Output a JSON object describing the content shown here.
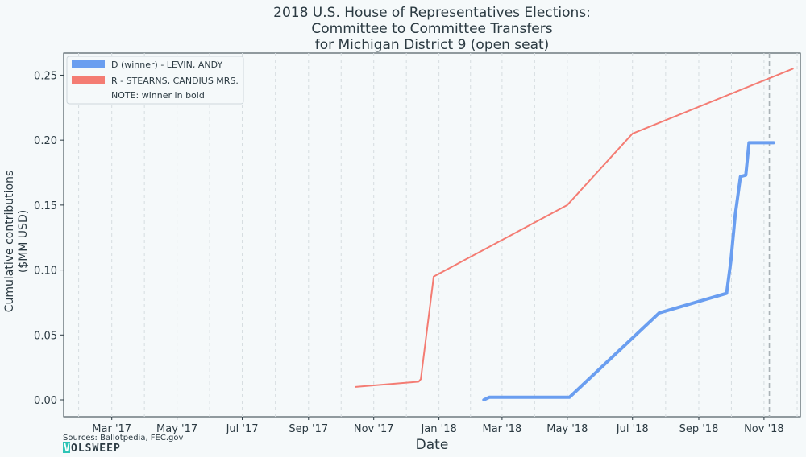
{
  "chart_data": {
    "type": "line",
    "title": [
      "2018 U.S. House of Representatives Elections:",
      "Committee to Committee Transfers",
      "for Michigan District 9 (open seat)"
    ],
    "xlabel": "Date",
    "ylabel": [
      "Cumulative contributions",
      "($MM USD)"
    ],
    "xlim": [
      "2017-01-15",
      "2018-12-05"
    ],
    "ylim": [
      -0.013,
      0.267
    ],
    "x_ticks": [
      {
        "date": "2017-03-01",
        "label": "Mar '17"
      },
      {
        "date": "2017-05-01",
        "label": "May '17"
      },
      {
        "date": "2017-07-01",
        "label": "Jul '17"
      },
      {
        "date": "2017-09-01",
        "label": "Sep '17"
      },
      {
        "date": "2017-11-01",
        "label": "Nov '17"
      },
      {
        "date": "2018-01-01",
        "label": "Jan '18"
      },
      {
        "date": "2018-03-01",
        "label": "Mar '18"
      },
      {
        "date": "2018-05-01",
        "label": "May '18"
      },
      {
        "date": "2018-07-01",
        "label": "Jul '18"
      },
      {
        "date": "2018-09-01",
        "label": "Sep '18"
      },
      {
        "date": "2018-11-01",
        "label": "Nov '18"
      }
    ],
    "y_ticks": [
      {
        "value": 0.0,
        "label": "0.00"
      },
      {
        "value": 0.05,
        "label": "0.05"
      },
      {
        "value": 0.1,
        "label": "0.10"
      },
      {
        "value": 0.15,
        "label": "0.15"
      },
      {
        "value": 0.2,
        "label": "0.20"
      },
      {
        "value": 0.25,
        "label": "0.25"
      }
    ],
    "grid": "vertical-dashed",
    "election_day_line": "2018-11-06",
    "legend_position": "top-left",
    "series": [
      {
        "name": "D (winner) - LEVIN, ANDY",
        "color": "#6a9ef0",
        "bold": true,
        "points": [
          [
            "2018-02-12",
            0.0
          ],
          [
            "2018-02-17",
            0.002
          ],
          [
            "2018-04-26",
            0.002
          ],
          [
            "2018-05-03",
            0.002
          ],
          [
            "2018-07-26",
            0.067
          ],
          [
            "2018-09-27",
            0.082
          ],
          [
            "2018-10-01",
            0.107
          ],
          [
            "2018-10-05",
            0.142
          ],
          [
            "2018-10-10",
            0.172
          ],
          [
            "2018-10-15",
            0.173
          ],
          [
            "2018-10-18",
            0.198
          ],
          [
            "2018-11-10",
            0.198
          ]
        ]
      },
      {
        "name": "R - STEARNS, CANDIUS MRS.",
        "color": "#f47c73",
        "bold": false,
        "points": [
          [
            "2017-10-15",
            0.01
          ],
          [
            "2017-12-13",
            0.014
          ],
          [
            "2017-12-15",
            0.016
          ],
          [
            "2017-12-26",
            0.088
          ],
          [
            "2017-12-27",
            0.095
          ],
          [
            "2018-05-01",
            0.15
          ],
          [
            "2018-07-01",
            0.205
          ],
          [
            "2018-11-28",
            0.255
          ]
        ]
      }
    ],
    "legend_note": "NOTE: winner in bold"
  },
  "footer": {
    "sources": "Sources: Ballotpedia, FEC.gov",
    "logo_mark": "V",
    "logo_text": "OLSWEEP"
  }
}
